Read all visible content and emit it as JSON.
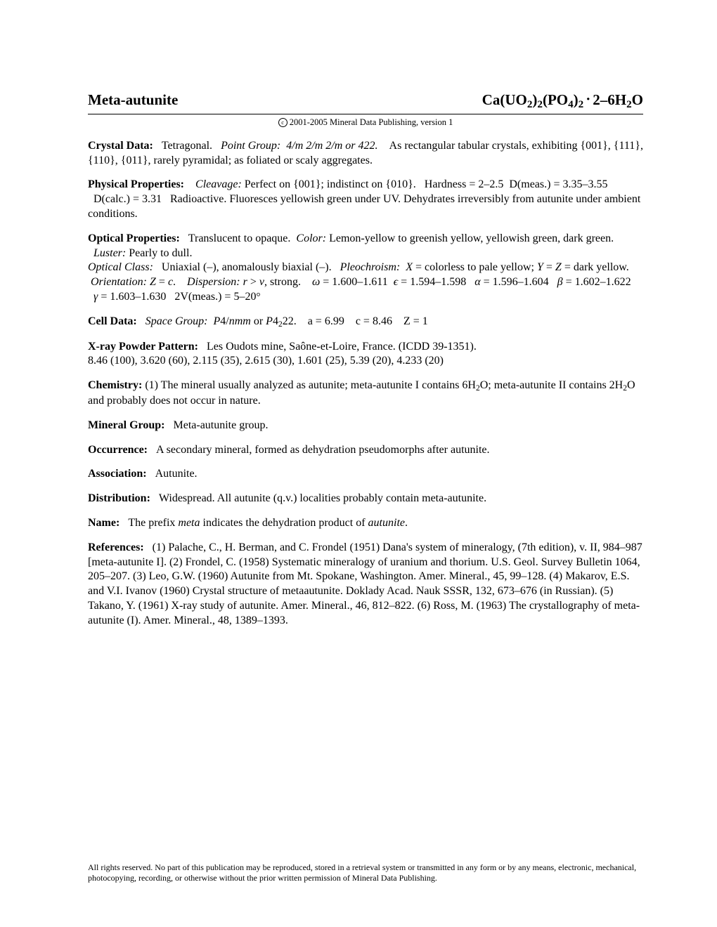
{
  "header": {
    "mineral_name": "Meta-autunite",
    "formula_html": "Ca(UO<sub>2</sub>)<sub>2</sub>(PO<sub>4</sub>)<sub>2</sub><span class='dot'>&middot;</span>2&ndash;6H<sub>2</sub>O"
  },
  "copyright": {
    "text": "2001-2005 Mineral Data Publishing, version 1"
  },
  "sections": {
    "crystal_data": {
      "label": "Crystal Data:",
      "system": "Tetragonal.",
      "point_group_label": "Point Group:",
      "point_group": "4/m 2/m 2/m or 422.",
      "rest": "As rectangular tabular crystals, exhibiting {001}, {111}, {110}, {011}, rarely pyramidal; as foliated or scaly aggregates."
    },
    "physical_properties": {
      "label": "Physical Properties:",
      "cleavage_label": "Cleavage:",
      "cleavage": "Perfect on {001}; indistinct on {010}.",
      "hardness": "Hardness = 2–2.5",
      "dmeas": "D(meas.) = 3.35–3.55",
      "dcalc": "D(calc.) = 3.31",
      "rest": "Radioactive. Fluoresces yellowish green under UV. Dehydrates irreversibly from autunite under ambient conditions."
    },
    "optical_properties": {
      "label": "Optical Properties:",
      "line1": "Translucent to opaque.",
      "color_label": "Color:",
      "color": "Lemon-yellow to greenish yellow, yellowish green, dark green.",
      "luster_label": "Luster:",
      "luster": "Pearly to dull.",
      "optclass_label": "Optical Class:",
      "optclass": "Uniaxial (–), anomalously biaxial (–).",
      "pleo_label": "Pleochroism:",
      "pleo_html": "<span class='ital'>X</span> = colorless to pale yellow; <span class='ital'>Y</span> = <span class='ital'>Z</span> = dark yellow.",
      "orient_label": "Orientation:",
      "orient_html": "<span class='ital'>Z</span> = <span class='ital'>c</span>.",
      "disp_label": "Dispersion:",
      "disp_html": "<span class='ital'>r</span> &gt; <span class='ital'>v</span>, strong.",
      "omega": "ω = 1.600–1.611",
      "eps": "ϵ = 1.594–1.598",
      "alpha": "α = 1.596–1.604",
      "beta": "β = 1.602–1.622",
      "gamma": "γ = 1.603–1.630",
      "twov": "2V(meas.) = 5–20°"
    },
    "cell_data": {
      "label": "Cell Data:",
      "sg_label": "Space Group:",
      "sg_html": "<span class='ital'>P</span>4/<span class='ital'>nmm</span> or <span class='ital'>P</span>4<sub>2</sub>22.",
      "a": "a = 6.99",
      "c": "c = 8.46",
      "z": "Z = 1"
    },
    "xray": {
      "label": "X-ray Powder Pattern:",
      "loc": "Les Oudots mine, Saône-et-Loire, France. (ICDD 39-1351).",
      "pattern": "8.46 (100), 3.620 (60), 2.115 (35), 2.615 (30), 1.601 (25), 5.39 (20), 4.233 (20)"
    },
    "chemistry": {
      "label": "Chemistry:",
      "text_html": "(1) The mineral usually analyzed as autunite; meta-autunite I contains 6H<sub>2</sub>O; meta-autunite II contains 2H<sub>2</sub>O and probably does not occur in nature."
    },
    "mineral_group": {
      "label": "Mineral Group:",
      "text": "Meta-autunite group."
    },
    "occurrence": {
      "label": "Occurrence:",
      "text": "A secondary mineral, formed as dehydration pseudomorphs after autunite."
    },
    "association": {
      "label": "Association:",
      "text": "Autunite."
    },
    "distribution": {
      "label": "Distribution:",
      "text": "Widespread. All autunite (q.v.) localities probably contain meta-autunite."
    },
    "name": {
      "label": "Name:",
      "text_html": "The prefix <span class='ital'>meta</span> indicates the dehydration product of <span class='ital'>autunite</span>."
    },
    "references": {
      "label": "References:",
      "text": "(1) Palache, C., H. Berman, and C. Frondel (1951) Dana's system of mineralogy, (7th edition), v. II, 984–987 [meta-autunite I]. (2) Frondel, C. (1958) Systematic mineralogy of uranium and thorium. U.S. Geol. Survey Bulletin 1064, 205–207. (3) Leo, G.W. (1960) Autunite from Mt. Spokane, Washington. Amer. Mineral., 45, 99–128. (4) Makarov, E.S. and V.I. Ivanov (1960) Crystal structure of metaautunite. Doklady Acad. Nauk SSSR, 132, 673–676 (in Russian). (5) Takano, Y. (1961) X-ray study of autunite. Amer. Mineral., 46, 812–822. (6) Ross, M. (1963) The crystallography of meta-autunite (I). Amer. Mineral., 48, 1389–1393."
    }
  },
  "footer": {
    "text": "All rights reserved. No part of this publication may be reproduced, stored in a retrieval system or transmitted in any form or by any means, electronic, mechanical, photocopying, recording, or otherwise without the prior written permission of Mineral Data Publishing."
  }
}
